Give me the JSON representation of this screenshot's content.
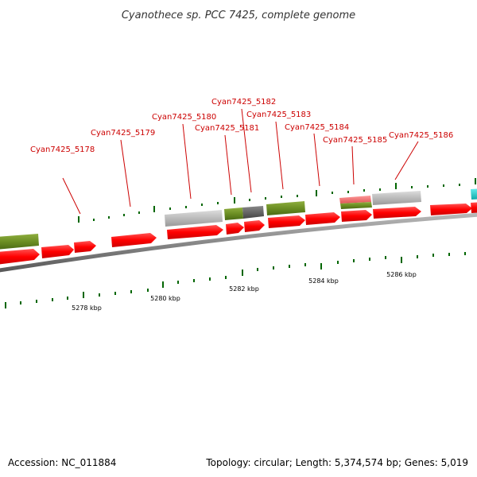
{
  "title": "Cyanothece sp. PCC 7425, complete genome",
  "footer": {
    "accession": "Accession: NC_011884",
    "summary": "Topology: circular; Length: 5,374,574 bp; Genes: 5,019"
  },
  "gene_labels": [
    {
      "id": "g5178",
      "text": "Cyan7425_5178"
    },
    {
      "id": "g5179",
      "text": "Cyan7425_5179"
    },
    {
      "id": "g5180",
      "text": "Cyan7425_5180"
    },
    {
      "id": "g5181",
      "text": "Cyan7425_5181"
    },
    {
      "id": "g5182",
      "text": "Cyan7425_5182"
    },
    {
      "id": "g5183",
      "text": "Cyan7425_5183"
    },
    {
      "id": "g5184",
      "text": "Cyan7425_5184"
    },
    {
      "id": "g5185",
      "text": "Cyan7425_5185"
    },
    {
      "id": "g5186",
      "text": "Cyan7425_5186"
    }
  ],
  "scale_labels": [
    "5278 kbp",
    "5280 kbp",
    "5282 kbp",
    "5284 kbp",
    "5286 kbp"
  ],
  "colors": {
    "gene": "#ff0000",
    "gene_dark": "#cc0000",
    "cds_green": "#6b8e23",
    "cds_grey": "#bbbbbb",
    "cds_darkgrey": "#666666",
    "cds_pink": "#ee6666",
    "cds_cyan": "#22cccc",
    "backbone": "#888888",
    "tick": "#006600",
    "label": "#cc0000"
  }
}
